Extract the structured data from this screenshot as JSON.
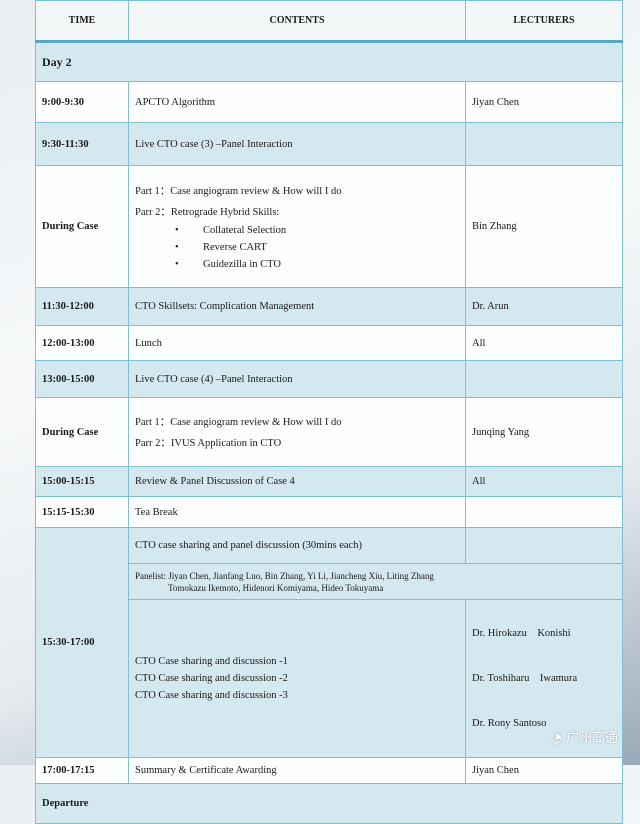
{
  "header": {
    "time": "TIME",
    "contents": "CONTENTS",
    "lecturers": "LECTURERS"
  },
  "day": "Day 2",
  "rows": [
    {
      "time": "9:00-9:30",
      "content": "APCTO Algorithm",
      "lecturer": "Jiyan Chen"
    },
    {
      "time": "9:30-11:30",
      "content": "Live CTO case (3) –Panel Interaction",
      "lecturer": ""
    },
    {
      "time": "During Case",
      "lines": [
        "Part 1：Case angiogram review & How will I do",
        "Parr 2：Retrograde Hybrid Skills:"
      ],
      "bullets": [
        "Collateral Selection",
        "Reverse CART",
        "Guidezilla in CTO"
      ],
      "lecturer": "Bin Zhang"
    },
    {
      "time": "11:30-12:00",
      "content": "CTO Skillsets: Complication Management",
      "lecturer": "Dr. Arun"
    },
    {
      "time": "12:00-13:00",
      "content": "Lunch",
      "lecturer": "All"
    },
    {
      "time": "13:00-15:00",
      "content": "Live CTO case (4) –Panel Interaction",
      "lecturer": ""
    },
    {
      "time": "During Case",
      "lines": [
        "Part 1：Case angiogram review & How will I do",
        "Parr 2：IVUS Application in CTO"
      ],
      "lecturer": "Junqing Yang"
    },
    {
      "time": "15:00-15:15",
      "content": "Review & Panel Discussion of Case 4",
      "lecturer": "All"
    },
    {
      "time": "15:15-15:30",
      "content": "Tea Break",
      "lecturer": ""
    },
    {
      "time": "15:30-17:00",
      "content": "CTO case sharing and panel discussion (30mins each)",
      "panelist_line1": "Panelist: Jiyan Chen, Jianfang Luo, Bin Zhang, Yi Li, Jiancheng Xiu, Liting Zhang",
      "panelist_line2": "Tomokazu Ikemoto, Hidenori Komiyama, Hideo Tokuyama",
      "cases": [
        "CTO Case sharing and discussion -1",
        "CTO Case sharing and discussion -2",
        "CTO Case sharing and discussion -3"
      ],
      "lecturers": [
        "Dr. Hirokazu    Konishi",
        "Dr. Toshiharu    Iwamura",
        "Dr. Rony Santoso"
      ]
    },
    {
      "time": "17:00-17:15",
      "content": "Summary & Certificate Awarding",
      "lecturer": "Jiyan Chen"
    }
  ],
  "departure": "Departure",
  "watermark": "广州高通"
}
